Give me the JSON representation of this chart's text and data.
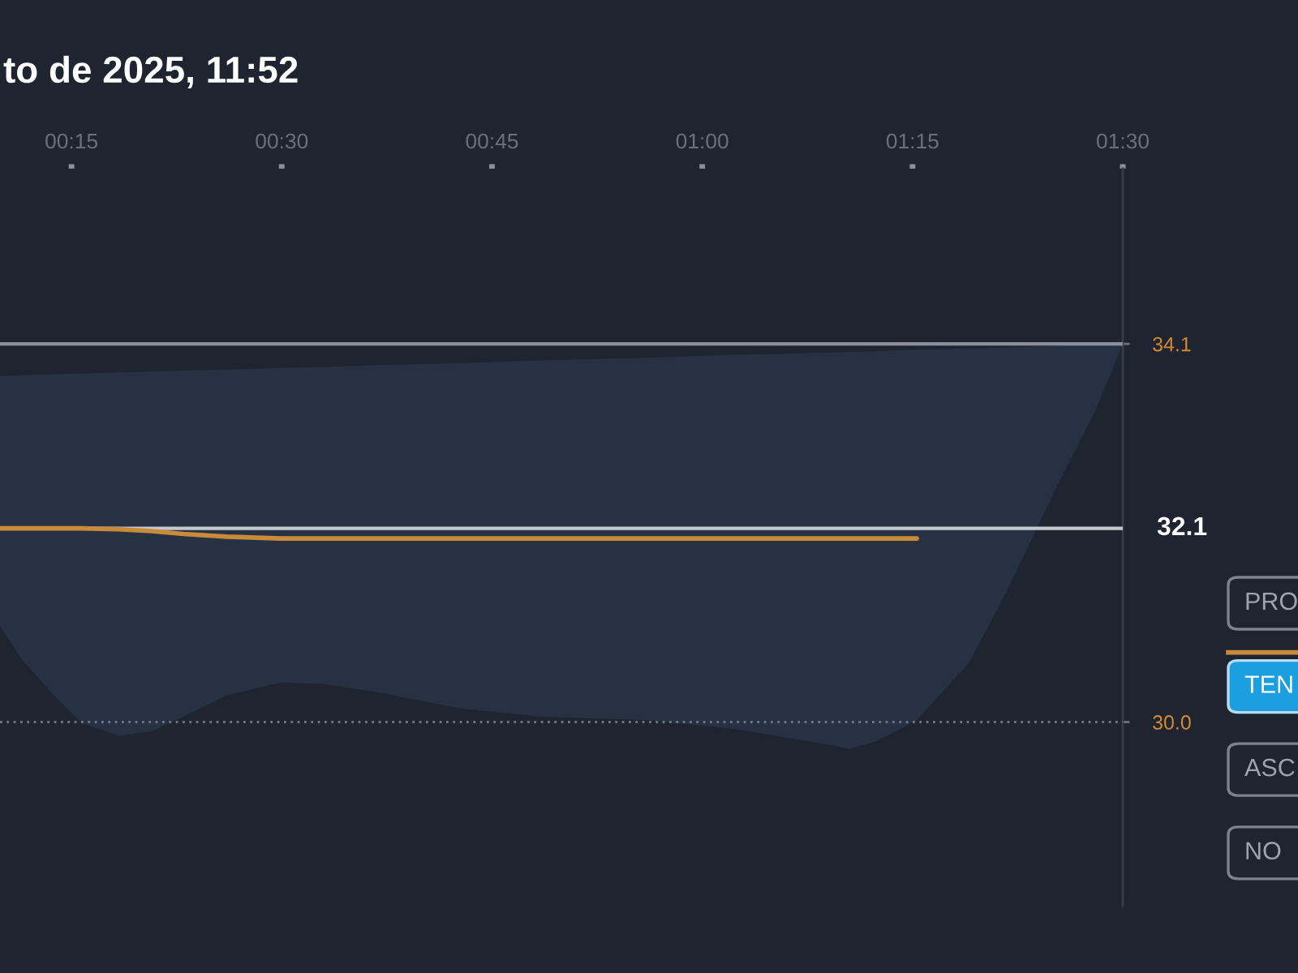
{
  "chart_data": {
    "type": "line",
    "title": "to de 2025, 11:52",
    "xlim": [
      0.165,
      1.5
    ],
    "xticks": [
      {
        "value": 0.25,
        "label": "00:15"
      },
      {
        "value": 0.5,
        "label": "00:30"
      },
      {
        "value": 0.75,
        "label": "00:45"
      },
      {
        "value": 1.0,
        "label": "01:00"
      },
      {
        "value": 1.25,
        "label": "01:15"
      },
      {
        "value": 1.5,
        "label": "01:30"
      }
    ],
    "ylim": [
      28,
      36
    ],
    "yticks": [
      {
        "value": 30,
        "label": "30.0"
      },
      {
        "value": 34.1,
        "label": "34.1"
      }
    ],
    "x": [
      0.165,
      0.19,
      0.229,
      0.262,
      0.306,
      0.345,
      0.383,
      0.435,
      0.499,
      0.551,
      0.615,
      0.711,
      0.807,
      0.937,
      1.033,
      1.13,
      1.174,
      1.207,
      1.255,
      1.317,
      1.361,
      1.423,
      1.467,
      1.5
    ],
    "series": [
      {
        "color": "#c98a3a",
        "values": [
          32.1,
          32.1,
          32.1,
          32.1,
          32.09,
          32.07,
          32.04,
          32.01,
          31.99,
          31.99,
          31.99,
          31.99,
          31.99,
          31.99,
          31.99,
          31.99,
          31.99,
          31.99,
          31.99,
          null,
          null,
          null,
          null,
          null
        ],
        "lower": [
          31.04,
          30.69,
          30.29,
          29.99,
          29.85,
          29.9,
          30.06,
          30.29,
          30.43,
          30.41,
          30.32,
          30.15,
          30.06,
          30.02,
          29.93,
          29.79,
          29.71,
          29.79,
          30.02,
          30.64,
          31.4,
          32.58,
          33.37,
          34.1
        ],
        "upper": [
          33.75,
          33.76,
          33.77,
          33.78,
          33.79,
          33.8,
          33.81,
          33.82,
          33.84,
          33.85,
          33.87,
          33.89,
          33.92,
          33.95,
          33.98,
          34.0,
          34.01,
          34.02,
          34.04,
          34.05,
          34.06,
          34.08,
          34.09,
          34.1
        ]
      }
    ],
    "ref_lines": [
      {
        "axis": "y",
        "value": 34.1,
        "color": "#8a8f99",
        "line_style": "solid"
      },
      {
        "axis": "y",
        "value": 32.1,
        "label": "32.1",
        "color": "#c5c8cf",
        "line_style": "solid"
      },
      {
        "axis": "y",
        "value": 30.0,
        "color": "#6f7580",
        "line_style": "dotted"
      }
    ],
    "annotations": [
      "PRO",
      "TEN",
      "ASC",
      "NO"
    ]
  }
}
